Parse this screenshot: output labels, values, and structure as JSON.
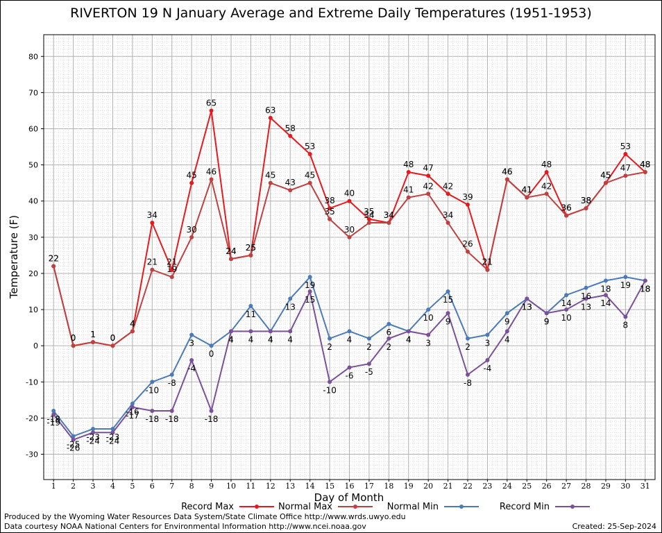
{
  "chart_data": {
    "type": "line",
    "title": "RIVERTON 19 N January Average and Extreme Daily Temperatures (1951-1953)",
    "xlabel": "Day of Month",
    "ylabel": "Temperature (F)",
    "x": [
      1,
      2,
      3,
      4,
      5,
      6,
      7,
      8,
      9,
      10,
      11,
      12,
      13,
      14,
      15,
      16,
      17,
      18,
      19,
      20,
      21,
      22,
      23,
      24,
      25,
      26,
      27,
      28,
      29,
      30,
      31
    ],
    "ylim": [
      -37,
      86
    ],
    "xlim": [
      0.5,
      31.5
    ],
    "yticks": [
      -30,
      -20,
      -10,
      0,
      10,
      20,
      30,
      40,
      50,
      60,
      70,
      80
    ],
    "grid": true,
    "legend_position": "bottom",
    "series": [
      {
        "name": "Record Max",
        "color": "#e8181c",
        "values": [
          22,
          0,
          1,
          0,
          4,
          34,
          21,
          45,
          65,
          24,
          25,
          63,
          58,
          53,
          38,
          40,
          35,
          34,
          48,
          47,
          42,
          39,
          21,
          46,
          41,
          48,
          36,
          38,
          45,
          53,
          48
        ]
      },
      {
        "name": "Normal Max",
        "color": "#c04040",
        "values": [
          22,
          0,
          1,
          0,
          4,
          21,
          19,
          30,
          46,
          24,
          25,
          45,
          43,
          45,
          35,
          30,
          34,
          34,
          41,
          42,
          34,
          26,
          21,
          46,
          41,
          42,
          36,
          38,
          45,
          47,
          48
        ]
      },
      {
        "name": "Normal Min",
        "color": "#4a7ab8",
        "values": [
          -18,
          -25,
          -23,
          -23,
          -16,
          -10,
          -8,
          3,
          0,
          4,
          11,
          4,
          13,
          19,
          2,
          4,
          2,
          6,
          4,
          10,
          15,
          2,
          3,
          9,
          13,
          9,
          14,
          16,
          18,
          19,
          18
        ]
      },
      {
        "name": "Record Min",
        "color": "#7b4f9a",
        "values": [
          -19,
          -26,
          -24,
          -24,
          -17,
          -18,
          -18,
          -4,
          -18,
          4,
          4,
          4,
          4,
          15,
          -10,
          -6,
          -5,
          2,
          4,
          3,
          9,
          -8,
          -4,
          4,
          13,
          9,
          10,
          13,
          14,
          8,
          18
        ]
      }
    ]
  },
  "footer": {
    "line1": "Produced by the Wyoming Water Resources Data System/State Climate Office http://www.wrds.uwyo.edu",
    "line2": "Data courtesy NOAA National Centers for Environmental Information http://www.ncei.noaa.gov",
    "created": "Created:  25-Sep-2024"
  }
}
